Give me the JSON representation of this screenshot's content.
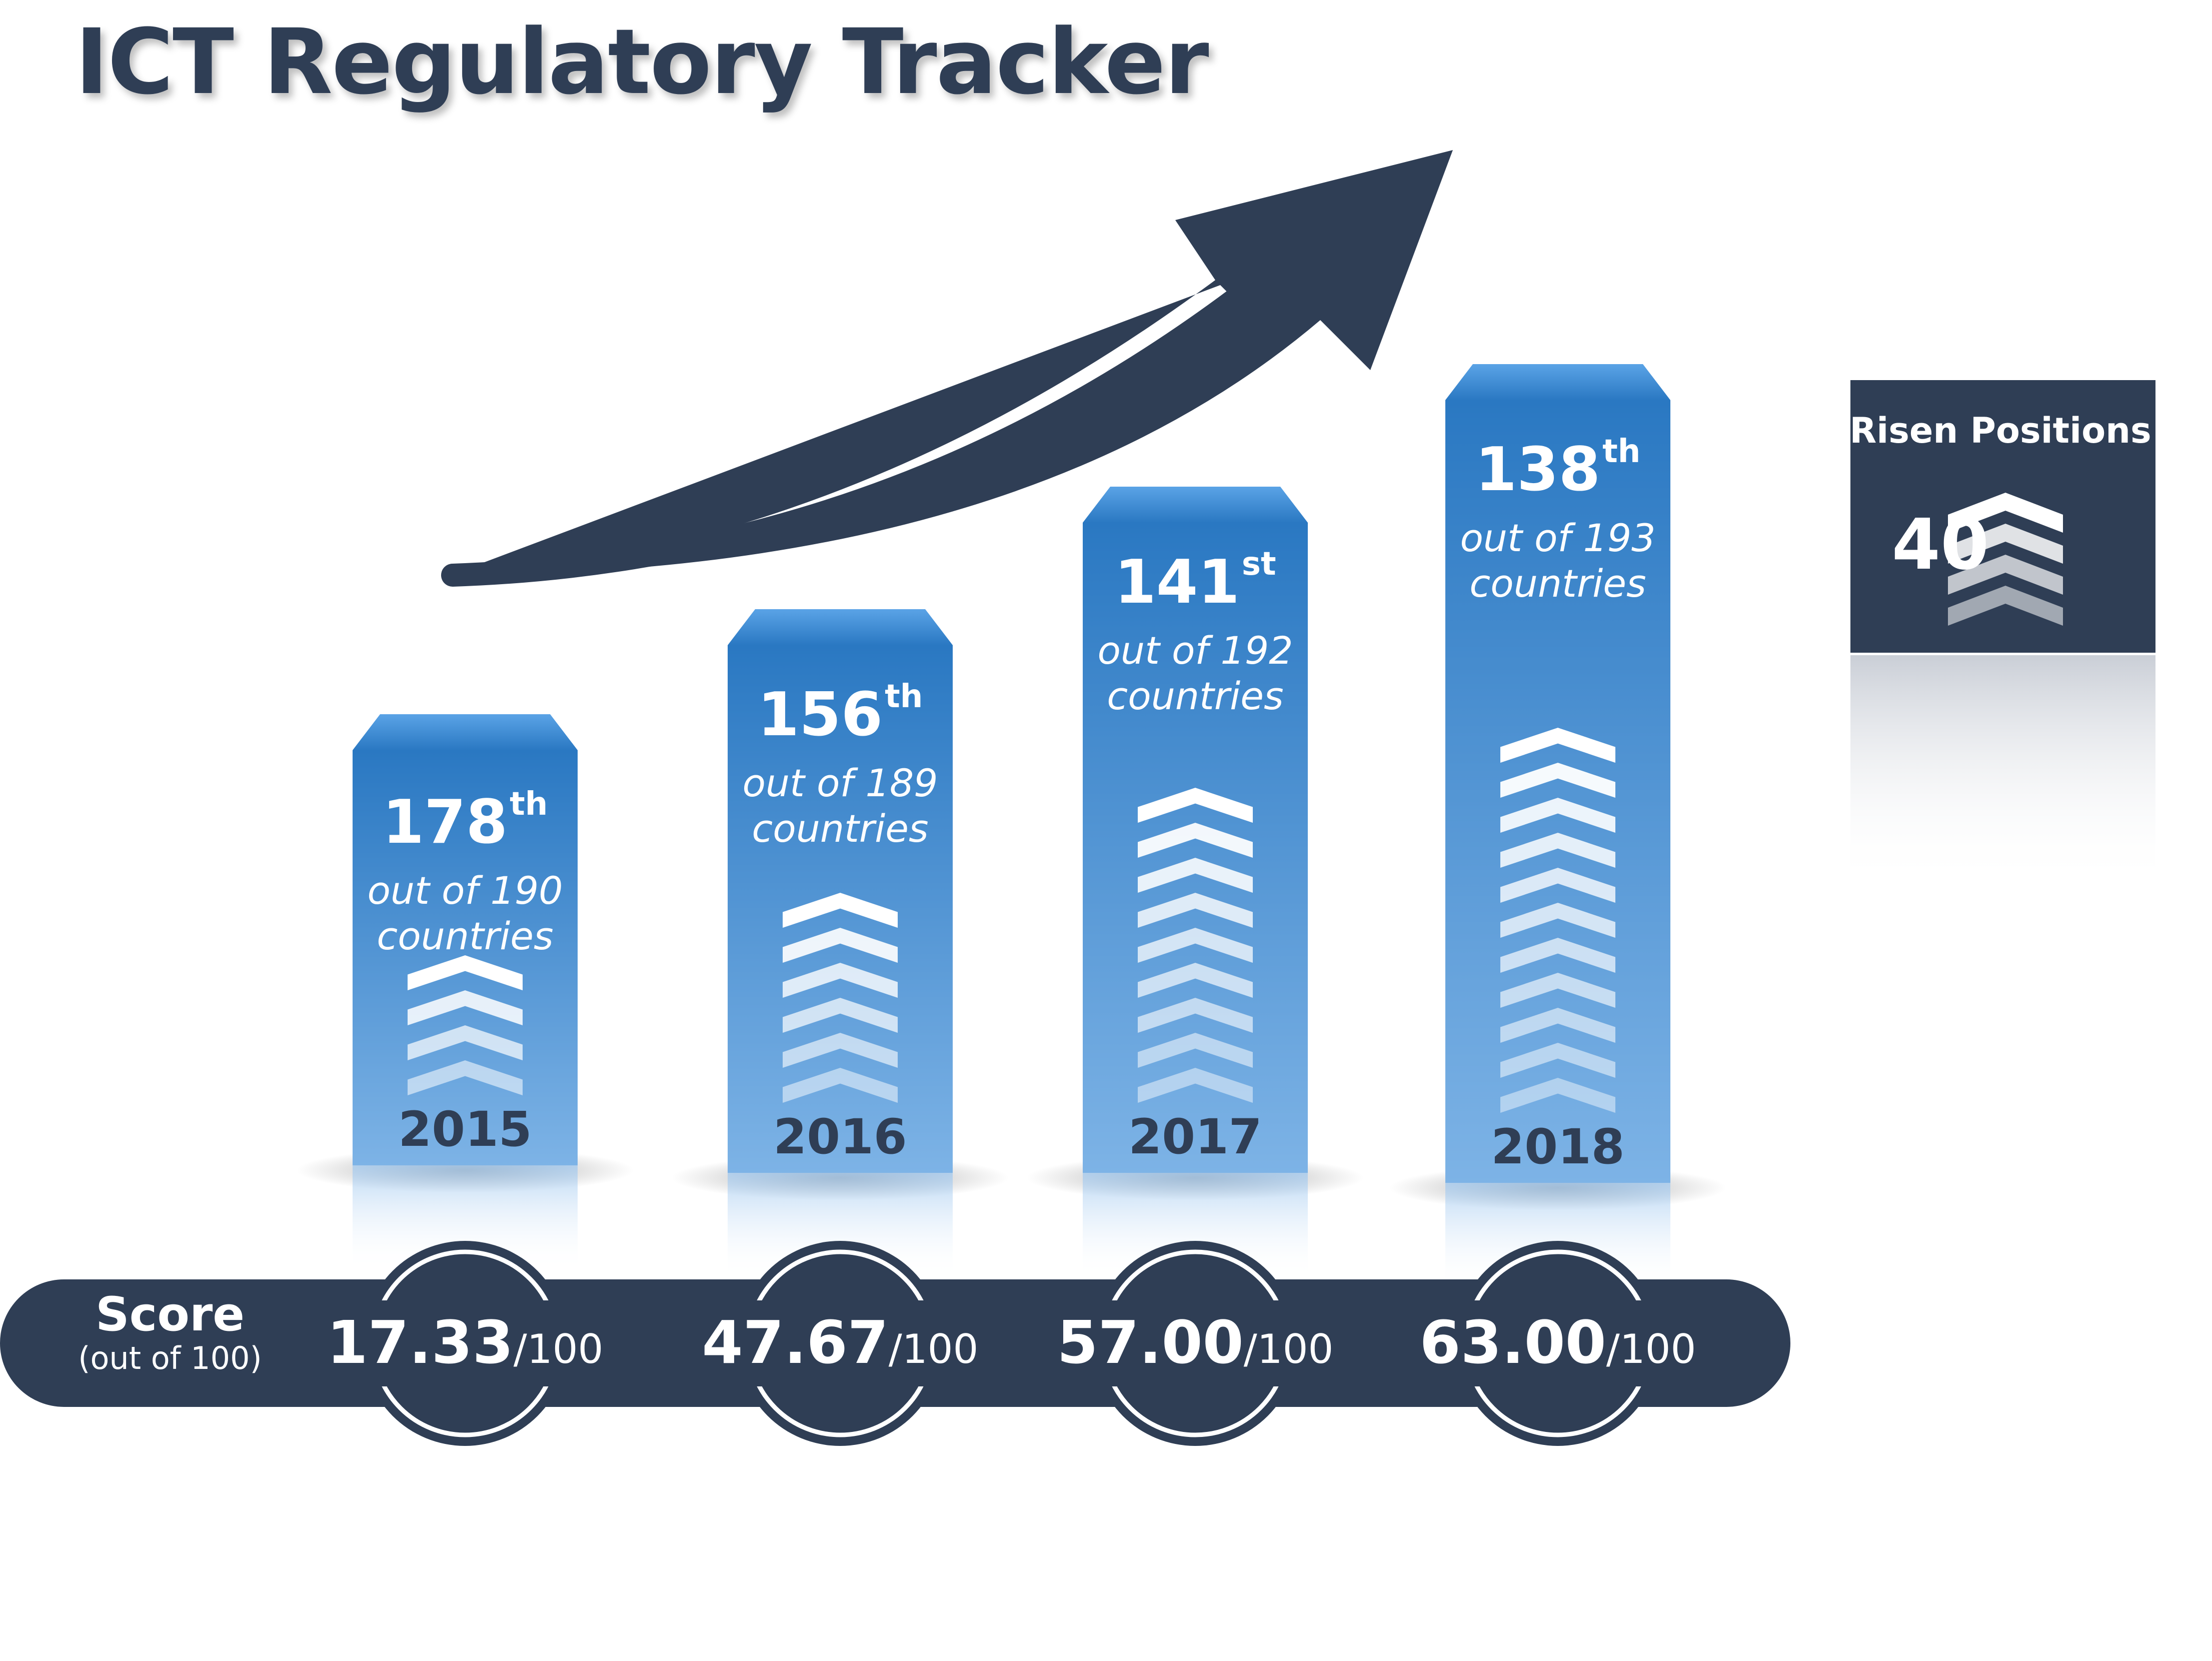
{
  "title": "ICT Regulatory Tracker",
  "colors": {
    "navy": "#2f3e55",
    "bar_top": "#2a78c2",
    "bar_bottom": "#7db3e6",
    "chevron": "#ffffff"
  },
  "score_label": {
    "main": "Score",
    "unit": "(out of 100)"
  },
  "risen": {
    "title": "Risen Positions",
    "value": "40"
  },
  "chart_data": {
    "type": "bar",
    "categories": [
      "2015",
      "2016",
      "2017",
      "2018"
    ],
    "series": [
      {
        "values": [
          17.33,
          47.67,
          57.0,
          63.0
        ]
      }
    ],
    "ranks": [
      {
        "rank": "178",
        "suffix": "th",
        "line1": "out of 190",
        "line2": "countries"
      },
      {
        "rank": "156",
        "suffix": "th",
        "line1": "out of 189",
        "line2": "countries"
      },
      {
        "rank": "141",
        "suffix": "st",
        "line1": "out of 192",
        "line2": "countries"
      },
      {
        "rank": "138",
        "suffix": "th",
        "line1": "out of 193",
        "line2": "countries"
      }
    ],
    "score_labels": [
      "17.33",
      "47.67",
      "57.00",
      "63.00"
    ],
    "score_denominator": "/100",
    "ylim": [
      0,
      100
    ]
  }
}
